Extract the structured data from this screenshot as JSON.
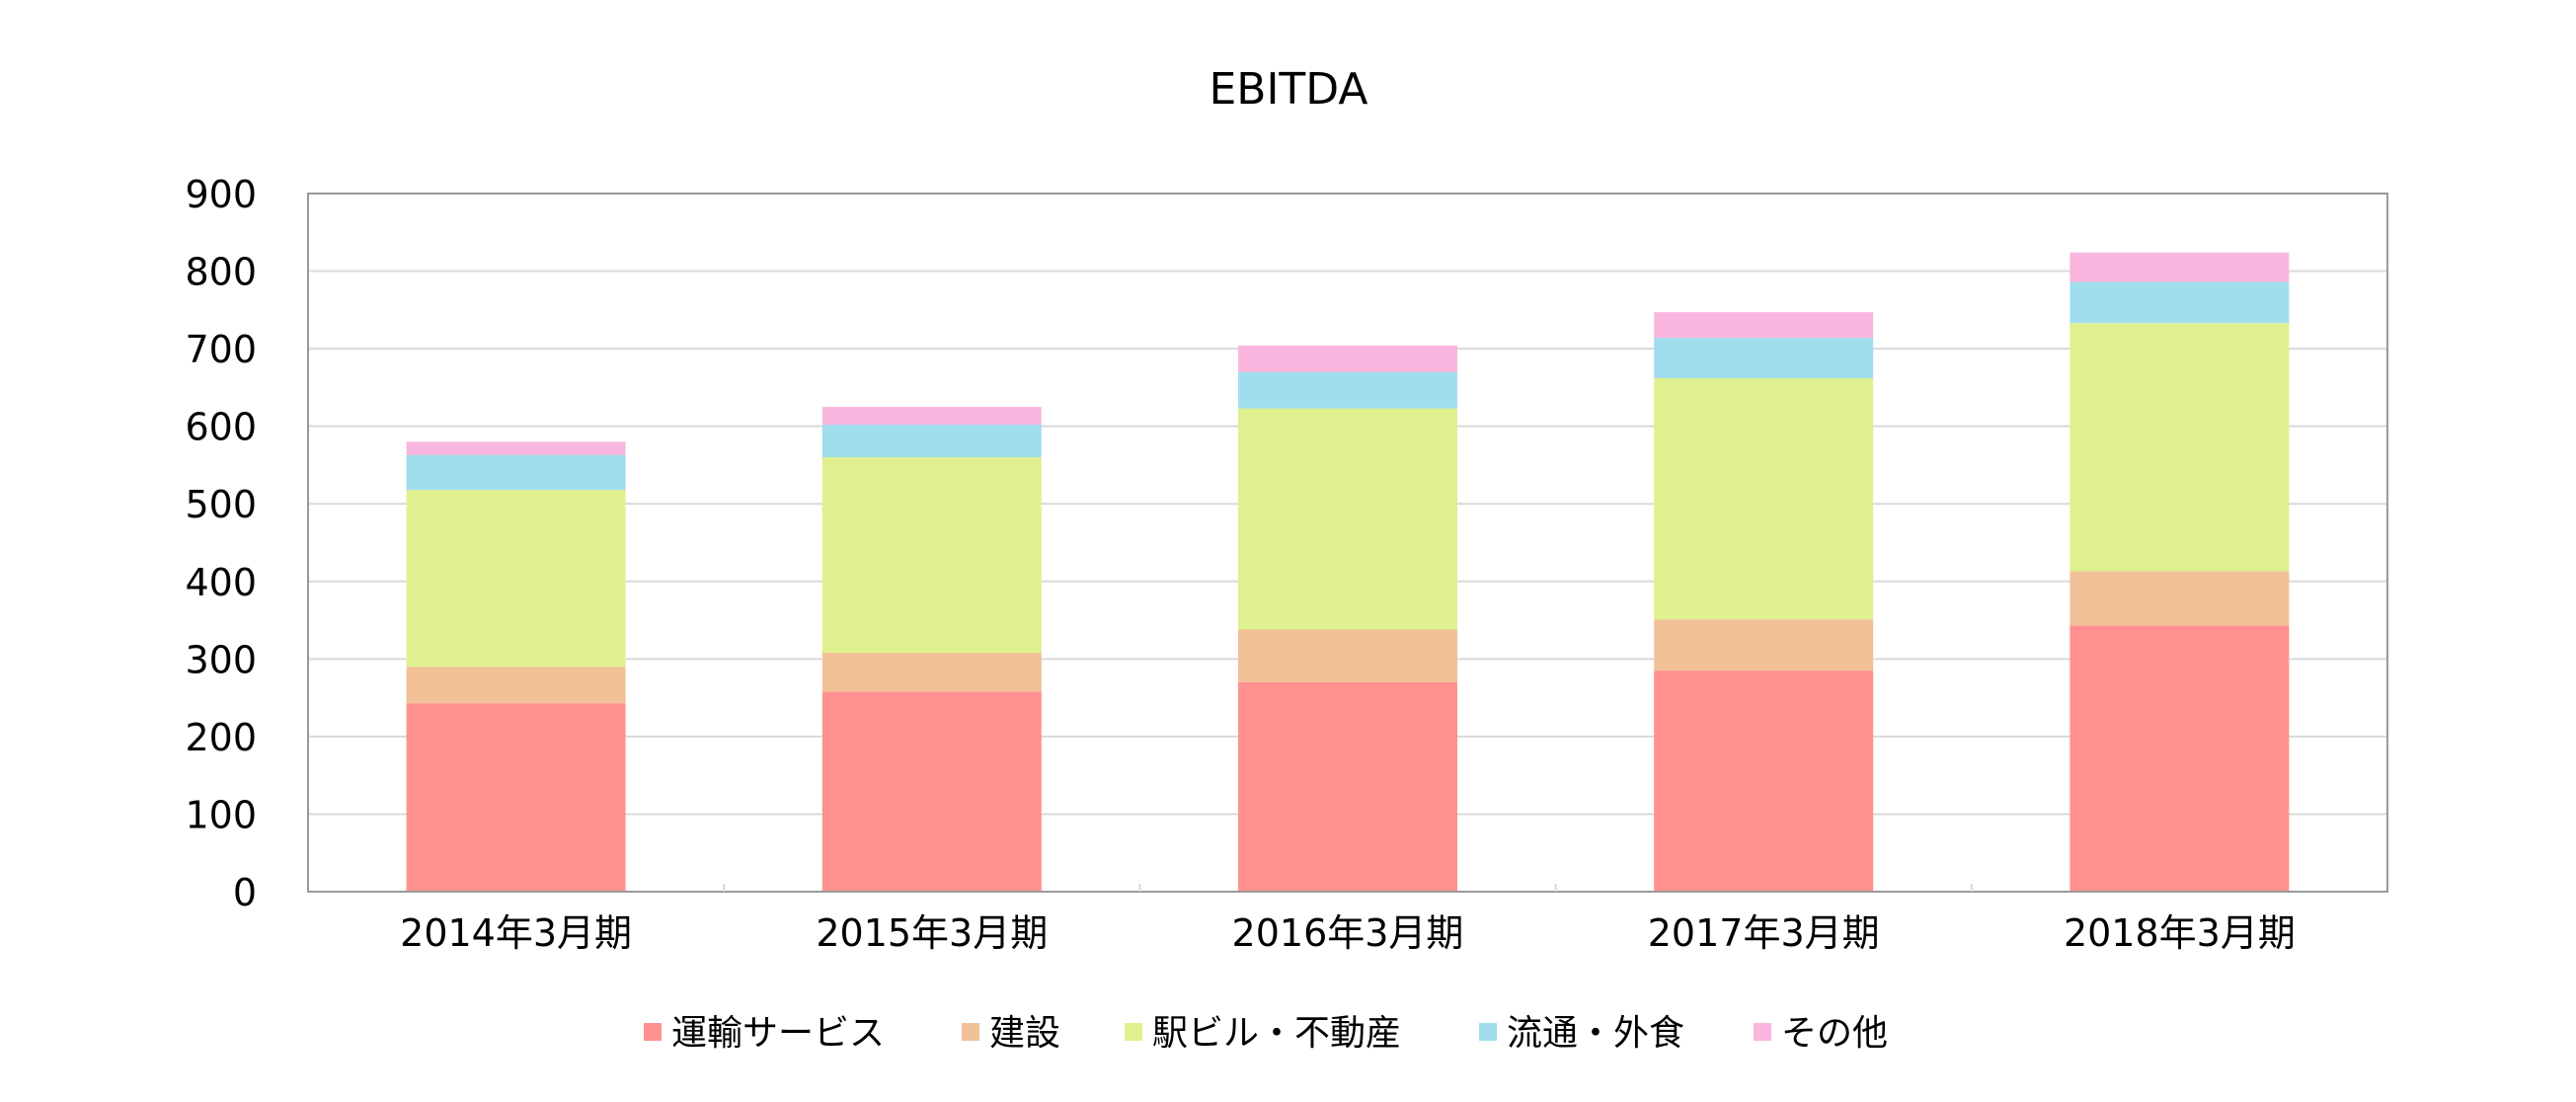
{
  "chart_data": {
    "type": "bar",
    "stacked": true,
    "title": "EBITDA",
    "xlabel": "",
    "ylabel": "",
    "ylim": [
      0,
      900
    ],
    "yticks": [
      0,
      100,
      200,
      300,
      400,
      500,
      600,
      700,
      800,
      900
    ],
    "grid": true,
    "legend_position": "bottom",
    "categories": [
      "2014年3月期",
      "2015年3月期",
      "2016年3月期",
      "2017年3月期",
      "2018年3月期"
    ],
    "series": [
      {
        "name": "運輸サービス",
        "color": "#ff9190",
        "values": [
          243,
          258,
          270,
          285,
          343
        ]
      },
      {
        "name": "建設",
        "color": "#f2c096",
        "values": [
          47,
          50,
          68,
          66,
          70
        ]
      },
      {
        "name": "駅ビル・不動産",
        "color": "#dff18e",
        "values": [
          228,
          252,
          285,
          311,
          320
        ]
      },
      {
        "name": "流通・外食",
        "color": "#a0deee",
        "values": [
          45,
          42,
          47,
          52,
          53
        ]
      },
      {
        "name": "その他",
        "color": "#f9b6de",
        "values": [
          17,
          23,
          34,
          33,
          38
        ]
      }
    ]
  }
}
